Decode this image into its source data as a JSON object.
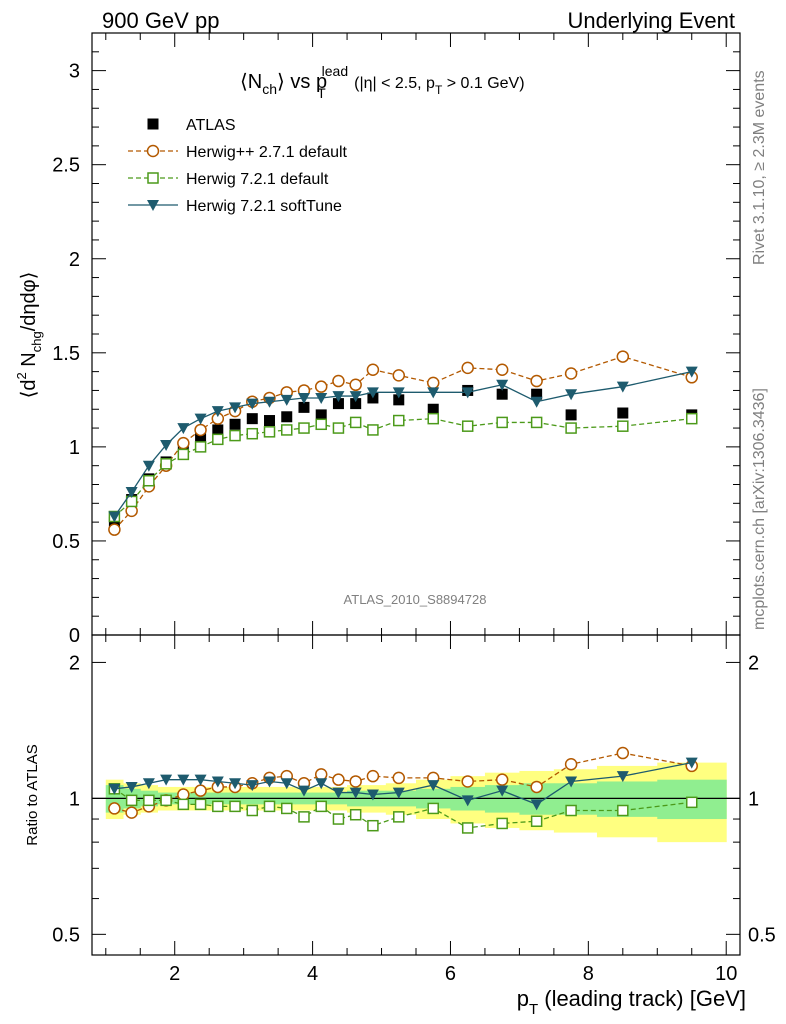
{
  "header": {
    "left": "900 GeV pp",
    "right": "Underlying Event"
  },
  "side": {
    "rivet": "Rivet 3.1.10, ≥ 2.3M events",
    "mcplots": "mcplots.cern.ch [arXiv:1306.3436]"
  },
  "watermark": "ATLAS_2010_S8894728",
  "title": {
    "n": "⟨N",
    "n_sub": "ch",
    "vs": "⟩ vs p",
    "p_sup": "lead",
    "p_sub": "T",
    "cuts_a": "(|η| < 2.5, p",
    "cuts_sub": "T",
    "cuts_b": " > 0.1 GeV)"
  },
  "ylabel_main": {
    "a": "⟨d",
    "sup": "2",
    "b": " N",
    "sub": "chg",
    "c": "/dηdφ⟩"
  },
  "ylabel_ratio": "Ratio to ATLAS",
  "xlabel": {
    "p": "p",
    "sub": "T",
    "rest": " (leading track) [GeV]"
  },
  "legend": [
    {
      "label": "ATLAS",
      "color": "#000000",
      "marker": "square-filled"
    },
    {
      "label": "Herwig++ 2.7.1 default",
      "color": "#b35900",
      "marker": "circle-open"
    },
    {
      "label": "Herwig 7.2.1 default",
      "color": "#4c9a1a",
      "marker": "square-open"
    },
    {
      "label": "Herwig 7.2.1 softTune",
      "color": "#1e5b6e",
      "marker": "triangle-down-filled"
    }
  ],
  "chart_data": {
    "type": "scatter",
    "x": [
      1.125,
      1.375,
      1.625,
      1.875,
      2.125,
      2.375,
      2.625,
      2.875,
      3.125,
      3.375,
      3.625,
      3.875,
      4.125,
      4.375,
      4.625,
      4.875,
      5.25,
      5.75,
      6.25,
      6.75,
      7.25,
      7.75,
      8.5,
      9.5
    ],
    "xlim": [
      0.8,
      10.2
    ],
    "xticks": [
      2,
      4,
      6,
      8,
      10
    ],
    "ylim_main": [
      0,
      3.2
    ],
    "yticks_main": [
      0.5,
      1,
      1.5,
      2,
      2.5,
      3
    ],
    "ylim_ratio": [
      0.45,
      2.3
    ],
    "yticks_ratio": [
      0.5,
      1,
      2
    ],
    "band_inner": [
      0.07,
      0.05,
      0.04,
      0.03,
      0.03,
      0.03,
      0.03,
      0.03,
      0.03,
      0.03,
      0.03,
      0.03,
      0.03,
      0.03,
      0.04,
      0.04,
      0.04,
      0.05,
      0.06,
      0.07,
      0.08,
      0.08,
      0.09,
      0.1
    ],
    "band_outer": [
      0.1,
      0.08,
      0.07,
      0.06,
      0.06,
      0.06,
      0.06,
      0.06,
      0.06,
      0.06,
      0.06,
      0.06,
      0.06,
      0.06,
      0.07,
      0.07,
      0.08,
      0.1,
      0.12,
      0.14,
      0.15,
      0.16,
      0.18,
      0.2
    ],
    "series": [
      {
        "name": "ATLAS",
        "values": [
          0.6,
          0.72,
          0.83,
          0.92,
          1.0,
          1.05,
          1.09,
          1.12,
          1.15,
          1.14,
          1.16,
          1.21,
          1.17,
          1.23,
          1.23,
          1.26,
          1.25,
          1.2,
          1.3,
          1.28,
          1.28,
          1.17,
          1.18,
          1.17
        ],
        "ratio": [
          1,
          1,
          1,
          1,
          1,
          1,
          1,
          1,
          1,
          1,
          1,
          1,
          1,
          1,
          1,
          1,
          1,
          1,
          1,
          1,
          1,
          1,
          1,
          1
        ]
      },
      {
        "name": "Herwig++ 2.7.1 default",
        "values": [
          0.56,
          0.66,
          0.79,
          0.9,
          1.02,
          1.09,
          1.15,
          1.19,
          1.24,
          1.26,
          1.29,
          1.3,
          1.32,
          1.35,
          1.33,
          1.41,
          1.38,
          1.34,
          1.42,
          1.41,
          1.35,
          1.39,
          1.48,
          1.37
        ],
        "ratio": [
          0.95,
          0.93,
          0.96,
          0.99,
          1.02,
          1.04,
          1.06,
          1.06,
          1.08,
          1.11,
          1.12,
          1.08,
          1.13,
          1.1,
          1.09,
          1.12,
          1.11,
          1.11,
          1.09,
          1.1,
          1.06,
          1.19,
          1.26,
          1.18
        ]
      },
      {
        "name": "Herwig 7.2.1 default",
        "values": [
          0.63,
          0.71,
          0.82,
          0.91,
          0.96,
          1.0,
          1.04,
          1.06,
          1.07,
          1.08,
          1.09,
          1.1,
          1.12,
          1.1,
          1.13,
          1.09,
          1.14,
          1.15,
          1.11,
          1.13,
          1.13,
          1.1,
          1.11,
          1.15
        ],
        "ratio": [
          1.05,
          0.99,
          0.99,
          0.99,
          0.97,
          0.97,
          0.96,
          0.96,
          0.94,
          0.96,
          0.95,
          0.91,
          0.96,
          0.9,
          0.92,
          0.87,
          0.91,
          0.95,
          0.86,
          0.88,
          0.89,
          0.94,
          0.94,
          0.98
        ]
      },
      {
        "name": "Herwig 7.2.1 softTune",
        "values": [
          0.63,
          0.76,
          0.9,
          1.01,
          1.1,
          1.15,
          1.19,
          1.21,
          1.23,
          1.24,
          1.25,
          1.26,
          1.26,
          1.27,
          1.27,
          1.29,
          1.29,
          1.29,
          1.29,
          1.33,
          1.24,
          1.28,
          1.32,
          1.4
        ],
        "ratio": [
          1.05,
          1.06,
          1.08,
          1.1,
          1.1,
          1.1,
          1.09,
          1.08,
          1.07,
          1.09,
          1.08,
          1.04,
          1.08,
          1.03,
          1.03,
          1.02,
          1.03,
          1.07,
          0.99,
          1.04,
          0.97,
          1.09,
          1.12,
          1.2
        ]
      }
    ]
  }
}
